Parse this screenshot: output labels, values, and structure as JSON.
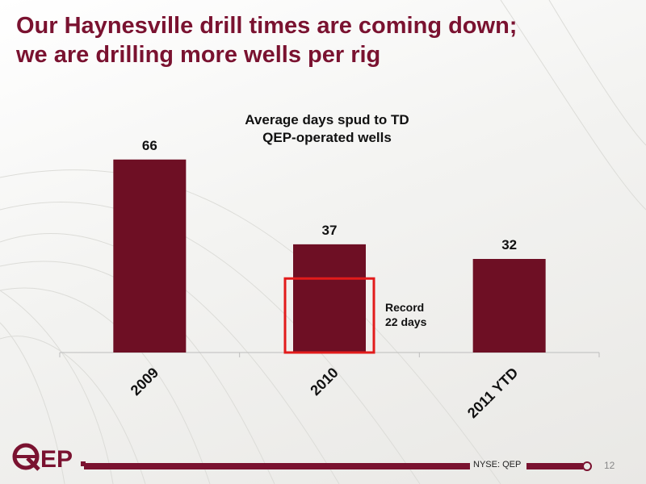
{
  "slide": {
    "title_line1": "Our Haynesville drill times are coming down;",
    "title_line2": "we are drilling more wells per rig",
    "page_number": "12",
    "ticker": "NYSE: QEP",
    "logo_text": "QEP"
  },
  "colors": {
    "title": "#7a1230",
    "bar": "#6e0f24",
    "highlight_box": "#e21b1b",
    "footer_bar": "#7a1230"
  },
  "chart_data": {
    "type": "bar",
    "title_line1": "Average days spud to TD",
    "title_line2": "QEP-operated wells",
    "categories": [
      "2009",
      "2010",
      "2011 YTD"
    ],
    "values": [
      66,
      37,
      32
    ],
    "ylim": [
      0,
      80
    ],
    "grid": false,
    "legend": false,
    "annotation": {
      "category_index": 1,
      "text_line1": "Record",
      "text_line2": "22 days",
      "value": 22
    }
  }
}
